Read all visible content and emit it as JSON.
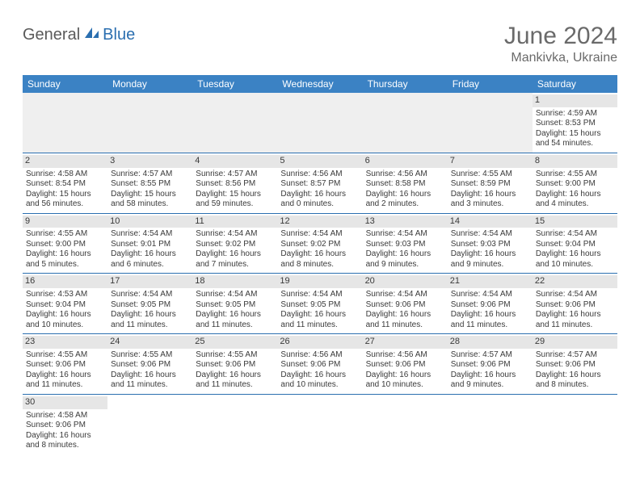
{
  "brand": {
    "general": "General",
    "blue": "Blue"
  },
  "title": "June 2024",
  "location": "Mankivka, Ukraine",
  "colors": {
    "header_bg": "#3b82c4",
    "header_text": "#ffffff",
    "divider": "#2b6fb0",
    "daynum_bg": "#e6e6e6",
    "body_text": "#3a3a3a",
    "muted_text": "#6a6a6a",
    "logo_blue": "#2b6fb0",
    "logo_gray": "#5a5a5a",
    "background": "#ffffff"
  },
  "typography": {
    "title_fontsize_pt": 22,
    "location_fontsize_pt": 12,
    "header_fontsize_pt": 9,
    "cell_fontsize_pt": 7.5
  },
  "day_headers": [
    "Sunday",
    "Monday",
    "Tuesday",
    "Wednesday",
    "Thursday",
    "Friday",
    "Saturday"
  ],
  "leading_blanks": 6,
  "days": [
    {
      "n": "1",
      "sr": "Sunrise: 4:59 AM",
      "ss": "Sunset: 8:53 PM",
      "dl1": "Daylight: 15 hours",
      "dl2": "and 54 minutes."
    },
    {
      "n": "2",
      "sr": "Sunrise: 4:58 AM",
      "ss": "Sunset: 8:54 PM",
      "dl1": "Daylight: 15 hours",
      "dl2": "and 56 minutes."
    },
    {
      "n": "3",
      "sr": "Sunrise: 4:57 AM",
      "ss": "Sunset: 8:55 PM",
      "dl1": "Daylight: 15 hours",
      "dl2": "and 58 minutes."
    },
    {
      "n": "4",
      "sr": "Sunrise: 4:57 AM",
      "ss": "Sunset: 8:56 PM",
      "dl1": "Daylight: 15 hours",
      "dl2": "and 59 minutes."
    },
    {
      "n": "5",
      "sr": "Sunrise: 4:56 AM",
      "ss": "Sunset: 8:57 PM",
      "dl1": "Daylight: 16 hours",
      "dl2": "and 0 minutes."
    },
    {
      "n": "6",
      "sr": "Sunrise: 4:56 AM",
      "ss": "Sunset: 8:58 PM",
      "dl1": "Daylight: 16 hours",
      "dl2": "and 2 minutes."
    },
    {
      "n": "7",
      "sr": "Sunrise: 4:55 AM",
      "ss": "Sunset: 8:59 PM",
      "dl1": "Daylight: 16 hours",
      "dl2": "and 3 minutes."
    },
    {
      "n": "8",
      "sr": "Sunrise: 4:55 AM",
      "ss": "Sunset: 9:00 PM",
      "dl1": "Daylight: 16 hours",
      "dl2": "and 4 minutes."
    },
    {
      "n": "9",
      "sr": "Sunrise: 4:55 AM",
      "ss": "Sunset: 9:00 PM",
      "dl1": "Daylight: 16 hours",
      "dl2": "and 5 minutes."
    },
    {
      "n": "10",
      "sr": "Sunrise: 4:54 AM",
      "ss": "Sunset: 9:01 PM",
      "dl1": "Daylight: 16 hours",
      "dl2": "and 6 minutes."
    },
    {
      "n": "11",
      "sr": "Sunrise: 4:54 AM",
      "ss": "Sunset: 9:02 PM",
      "dl1": "Daylight: 16 hours",
      "dl2": "and 7 minutes."
    },
    {
      "n": "12",
      "sr": "Sunrise: 4:54 AM",
      "ss": "Sunset: 9:02 PM",
      "dl1": "Daylight: 16 hours",
      "dl2": "and 8 minutes."
    },
    {
      "n": "13",
      "sr": "Sunrise: 4:54 AM",
      "ss": "Sunset: 9:03 PM",
      "dl1": "Daylight: 16 hours",
      "dl2": "and 9 minutes."
    },
    {
      "n": "14",
      "sr": "Sunrise: 4:54 AM",
      "ss": "Sunset: 9:03 PM",
      "dl1": "Daylight: 16 hours",
      "dl2": "and 9 minutes."
    },
    {
      "n": "15",
      "sr": "Sunrise: 4:54 AM",
      "ss": "Sunset: 9:04 PM",
      "dl1": "Daylight: 16 hours",
      "dl2": "and 10 minutes."
    },
    {
      "n": "16",
      "sr": "Sunrise: 4:53 AM",
      "ss": "Sunset: 9:04 PM",
      "dl1": "Daylight: 16 hours",
      "dl2": "and 10 minutes."
    },
    {
      "n": "17",
      "sr": "Sunrise: 4:54 AM",
      "ss": "Sunset: 9:05 PM",
      "dl1": "Daylight: 16 hours",
      "dl2": "and 11 minutes."
    },
    {
      "n": "18",
      "sr": "Sunrise: 4:54 AM",
      "ss": "Sunset: 9:05 PM",
      "dl1": "Daylight: 16 hours",
      "dl2": "and 11 minutes."
    },
    {
      "n": "19",
      "sr": "Sunrise: 4:54 AM",
      "ss": "Sunset: 9:05 PM",
      "dl1": "Daylight: 16 hours",
      "dl2": "and 11 minutes."
    },
    {
      "n": "20",
      "sr": "Sunrise: 4:54 AM",
      "ss": "Sunset: 9:06 PM",
      "dl1": "Daylight: 16 hours",
      "dl2": "and 11 minutes."
    },
    {
      "n": "21",
      "sr": "Sunrise: 4:54 AM",
      "ss": "Sunset: 9:06 PM",
      "dl1": "Daylight: 16 hours",
      "dl2": "and 11 minutes."
    },
    {
      "n": "22",
      "sr": "Sunrise: 4:54 AM",
      "ss": "Sunset: 9:06 PM",
      "dl1": "Daylight: 16 hours",
      "dl2": "and 11 minutes."
    },
    {
      "n": "23",
      "sr": "Sunrise: 4:55 AM",
      "ss": "Sunset: 9:06 PM",
      "dl1": "Daylight: 16 hours",
      "dl2": "and 11 minutes."
    },
    {
      "n": "24",
      "sr": "Sunrise: 4:55 AM",
      "ss": "Sunset: 9:06 PM",
      "dl1": "Daylight: 16 hours",
      "dl2": "and 11 minutes."
    },
    {
      "n": "25",
      "sr": "Sunrise: 4:55 AM",
      "ss": "Sunset: 9:06 PM",
      "dl1": "Daylight: 16 hours",
      "dl2": "and 11 minutes."
    },
    {
      "n": "26",
      "sr": "Sunrise: 4:56 AM",
      "ss": "Sunset: 9:06 PM",
      "dl1": "Daylight: 16 hours",
      "dl2": "and 10 minutes."
    },
    {
      "n": "27",
      "sr": "Sunrise: 4:56 AM",
      "ss": "Sunset: 9:06 PM",
      "dl1": "Daylight: 16 hours",
      "dl2": "and 10 minutes."
    },
    {
      "n": "28",
      "sr": "Sunrise: 4:57 AM",
      "ss": "Sunset: 9:06 PM",
      "dl1": "Daylight: 16 hours",
      "dl2": "and 9 minutes."
    },
    {
      "n": "29",
      "sr": "Sunrise: 4:57 AM",
      "ss": "Sunset: 9:06 PM",
      "dl1": "Daylight: 16 hours",
      "dl2": "and 8 minutes."
    },
    {
      "n": "30",
      "sr": "Sunrise: 4:58 AM",
      "ss": "Sunset: 9:06 PM",
      "dl1": "Daylight: 16 hours",
      "dl2": "and 8 minutes."
    }
  ]
}
